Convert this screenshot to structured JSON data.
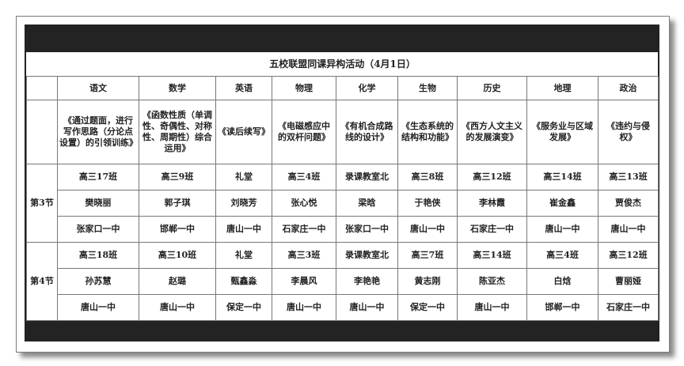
{
  "title": "五校联盟同课异构活动（4月1日）",
  "subjects": [
    "语文",
    "数学",
    "英语",
    "物理",
    "化学",
    "生物",
    "历史",
    "地理",
    "政治"
  ],
  "topics": [
    "《通过题面，进行写作思路（分论点设置）的引领训练》",
    "《函数性质（单调性、奇偶性、对称性、周期性）综合运用》",
    "《读后续写》",
    "《电磁感应中的双杆问题》",
    "《有机合成路线的设计》",
    "《生态系统的结构和功能》",
    "《西方人文主义的发展演变》",
    "《服务业与区域发展》",
    "《违约与侵权》"
  ],
  "periods": [
    {
      "label": "第3节",
      "rooms": [
        "高三17班",
        "高三9班",
        "礼堂",
        "高三4班",
        "录课教室北",
        "高三8班",
        "高三12班",
        "高三14班",
        "高三13班"
      ],
      "teachers": [
        "樊晓丽",
        "郭子琪",
        "刘晓芳",
        "张心悦",
        "梁晗",
        "于艳侠",
        "李林霞",
        "崔金鑫",
        "贾俊杰"
      ],
      "schools": [
        "张家口一中",
        "邯郸一中",
        "唐山一中",
        "石家庄一中",
        "张家口一中",
        "唐山一中",
        "石家庄一中",
        "唐山一中",
        "唐山一中"
      ]
    },
    {
      "label": "第4节",
      "rooms": [
        "高三18班",
        "高三10班",
        "礼堂",
        "高三3班",
        "录课教室北",
        "高三7班",
        "高三14班",
        "高三4班",
        "高三12班"
      ],
      "teachers": [
        "孙苏慧",
        "赵璐",
        "甄鑫淼",
        "李晨风",
        "李艳艳",
        "黄志刚",
        "陈亚杰",
        "白焓",
        "曹丽娅"
      ],
      "schools": [
        "唐山一中",
        "唐山一中",
        "保定一中",
        "唐山一中",
        "唐山一中",
        "保定一中",
        "唐山一中",
        "邯郸一中",
        "石家庄一中"
      ]
    }
  ]
}
